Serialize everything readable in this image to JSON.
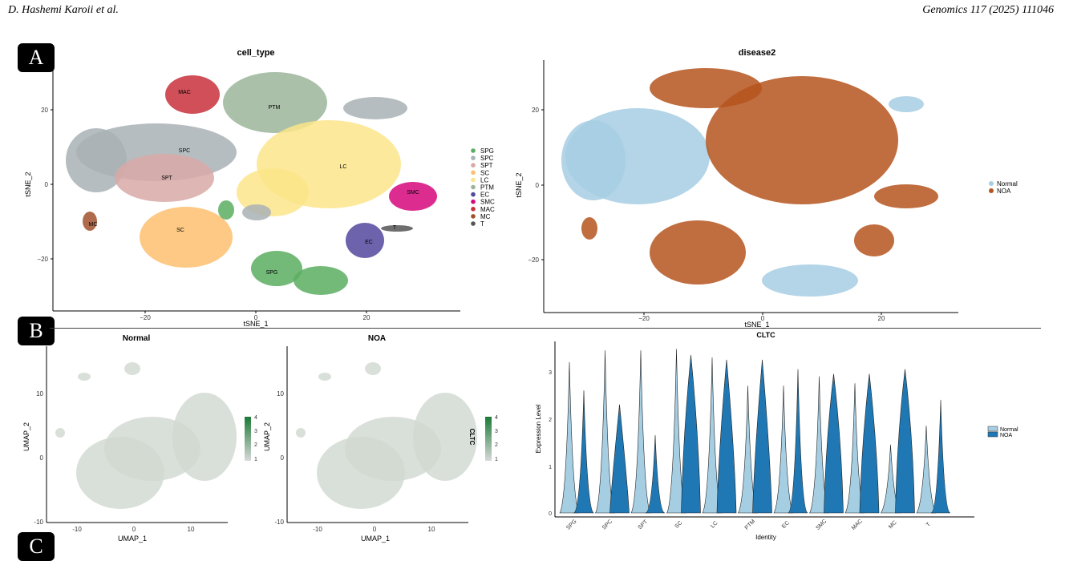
{
  "header": {
    "authors": "D. Hashemi Karoii et al.",
    "journal": "Genomics 117 (2025) 111046"
  },
  "panel_labels": [
    "A",
    "B",
    "C"
  ],
  "panelA": {
    "left": {
      "title": "cell_type",
      "xlabel": "tSNE_1",
      "ylabel": "tSNE_2",
      "xticks": [
        "−20",
        "0",
        "20"
      ],
      "yticks": [
        "20",
        "0",
        "−20"
      ],
      "cluster_labels": [
        "MAC",
        "PTM",
        "SPC",
        "SPT",
        "LC",
        "SMC",
        "MC",
        "SC",
        "SPG",
        "EC",
        "T"
      ],
      "legend": [
        {
          "label": "SPG",
          "color": "#5aae61"
        },
        {
          "label": "SPC",
          "color": "#a9b2b5"
        },
        {
          "label": "SPT",
          "color": "#d8a9a7"
        },
        {
          "label": "SC",
          "color": "#fdbf6f"
        },
        {
          "label": "LC",
          "color": "#fbe58a"
        },
        {
          "label": "PTM",
          "color": "#9bb59a"
        },
        {
          "label": "EC",
          "color": "#54489d"
        },
        {
          "label": "SMC",
          "color": "#d6077c"
        },
        {
          "label": "MAC",
          "color": "#c8303b"
        },
        {
          "label": "MC",
          "color": "#a0522d"
        },
        {
          "label": "T",
          "color": "#555555"
        }
      ]
    },
    "right": {
      "title": "disease2",
      "xlabel": "tSNE_1",
      "ylabel": "tSNE_2",
      "xticks": [
        "−20",
        "0",
        "20"
      ],
      "yticks": [
        "20",
        "0",
        "−20"
      ],
      "legend": [
        {
          "label": "Normal",
          "color": "#a6cee3"
        },
        {
          "label": "NOA",
          "color": "#b5541d"
        }
      ]
    }
  },
  "panelB": {
    "umap_normal": {
      "title": "Normal",
      "xlabel": "UMAP_1",
      "ylabel": "UMAP_2",
      "xticks": [
        "-10",
        "0",
        "10"
      ],
      "yticks": [
        "10",
        "0",
        "-10"
      ],
      "colorbar_ticks": [
        "4",
        "3",
        "2",
        "1"
      ]
    },
    "umap_noa": {
      "title": "NOA",
      "xlabel": "UMAP_1",
      "ylabel": "UMAP_2",
      "xticks": [
        "-10",
        "0",
        "10"
      ],
      "yticks": [
        "10",
        "0",
        "-10"
      ],
      "colorbar_title": "CLTC",
      "colorbar_ticks": [
        "4",
        "3",
        "2",
        "1"
      ]
    },
    "violin": {
      "title": "CLTC",
      "xlabel": "Identity",
      "ylabel": "Expression Level",
      "yticks": [
        "3",
        "2",
        "1",
        "0"
      ],
      "legend": [
        {
          "label": "Normal",
          "color": "#a6cee3"
        },
        {
          "label": "NOA",
          "color": "#1f78b4"
        }
      ]
    }
  },
  "chart_data": {
    "type": "violin",
    "title": "CLTC",
    "xlabel": "Identity",
    "ylabel": "Expression Level",
    "ylim": [
      0,
      3.5
    ],
    "categories": [
      "SPG",
      "SPC",
      "SPT",
      "SC",
      "LC",
      "PTM",
      "EC",
      "SMC",
      "MAC",
      "MC",
      "T"
    ],
    "series": [
      {
        "name": "Normal",
        "max": [
          3.2,
          3.45,
          3.45,
          3.48,
          3.3,
          2.7,
          2.7,
          2.9,
          2.75,
          1.45,
          1.85
        ]
      },
      {
        "name": "NOA",
        "max": [
          2.6,
          2.3,
          1.65,
          3.35,
          3.25,
          3.25,
          3.05,
          2.95,
          2.95,
          3.05,
          2.4
        ],
        "peak": [
          0.1,
          0.6,
          0.0,
          1.6,
          1.3,
          1.2,
          0.05,
          1.5,
          1.4,
          1.6,
          0.0
        ]
      }
    ]
  }
}
